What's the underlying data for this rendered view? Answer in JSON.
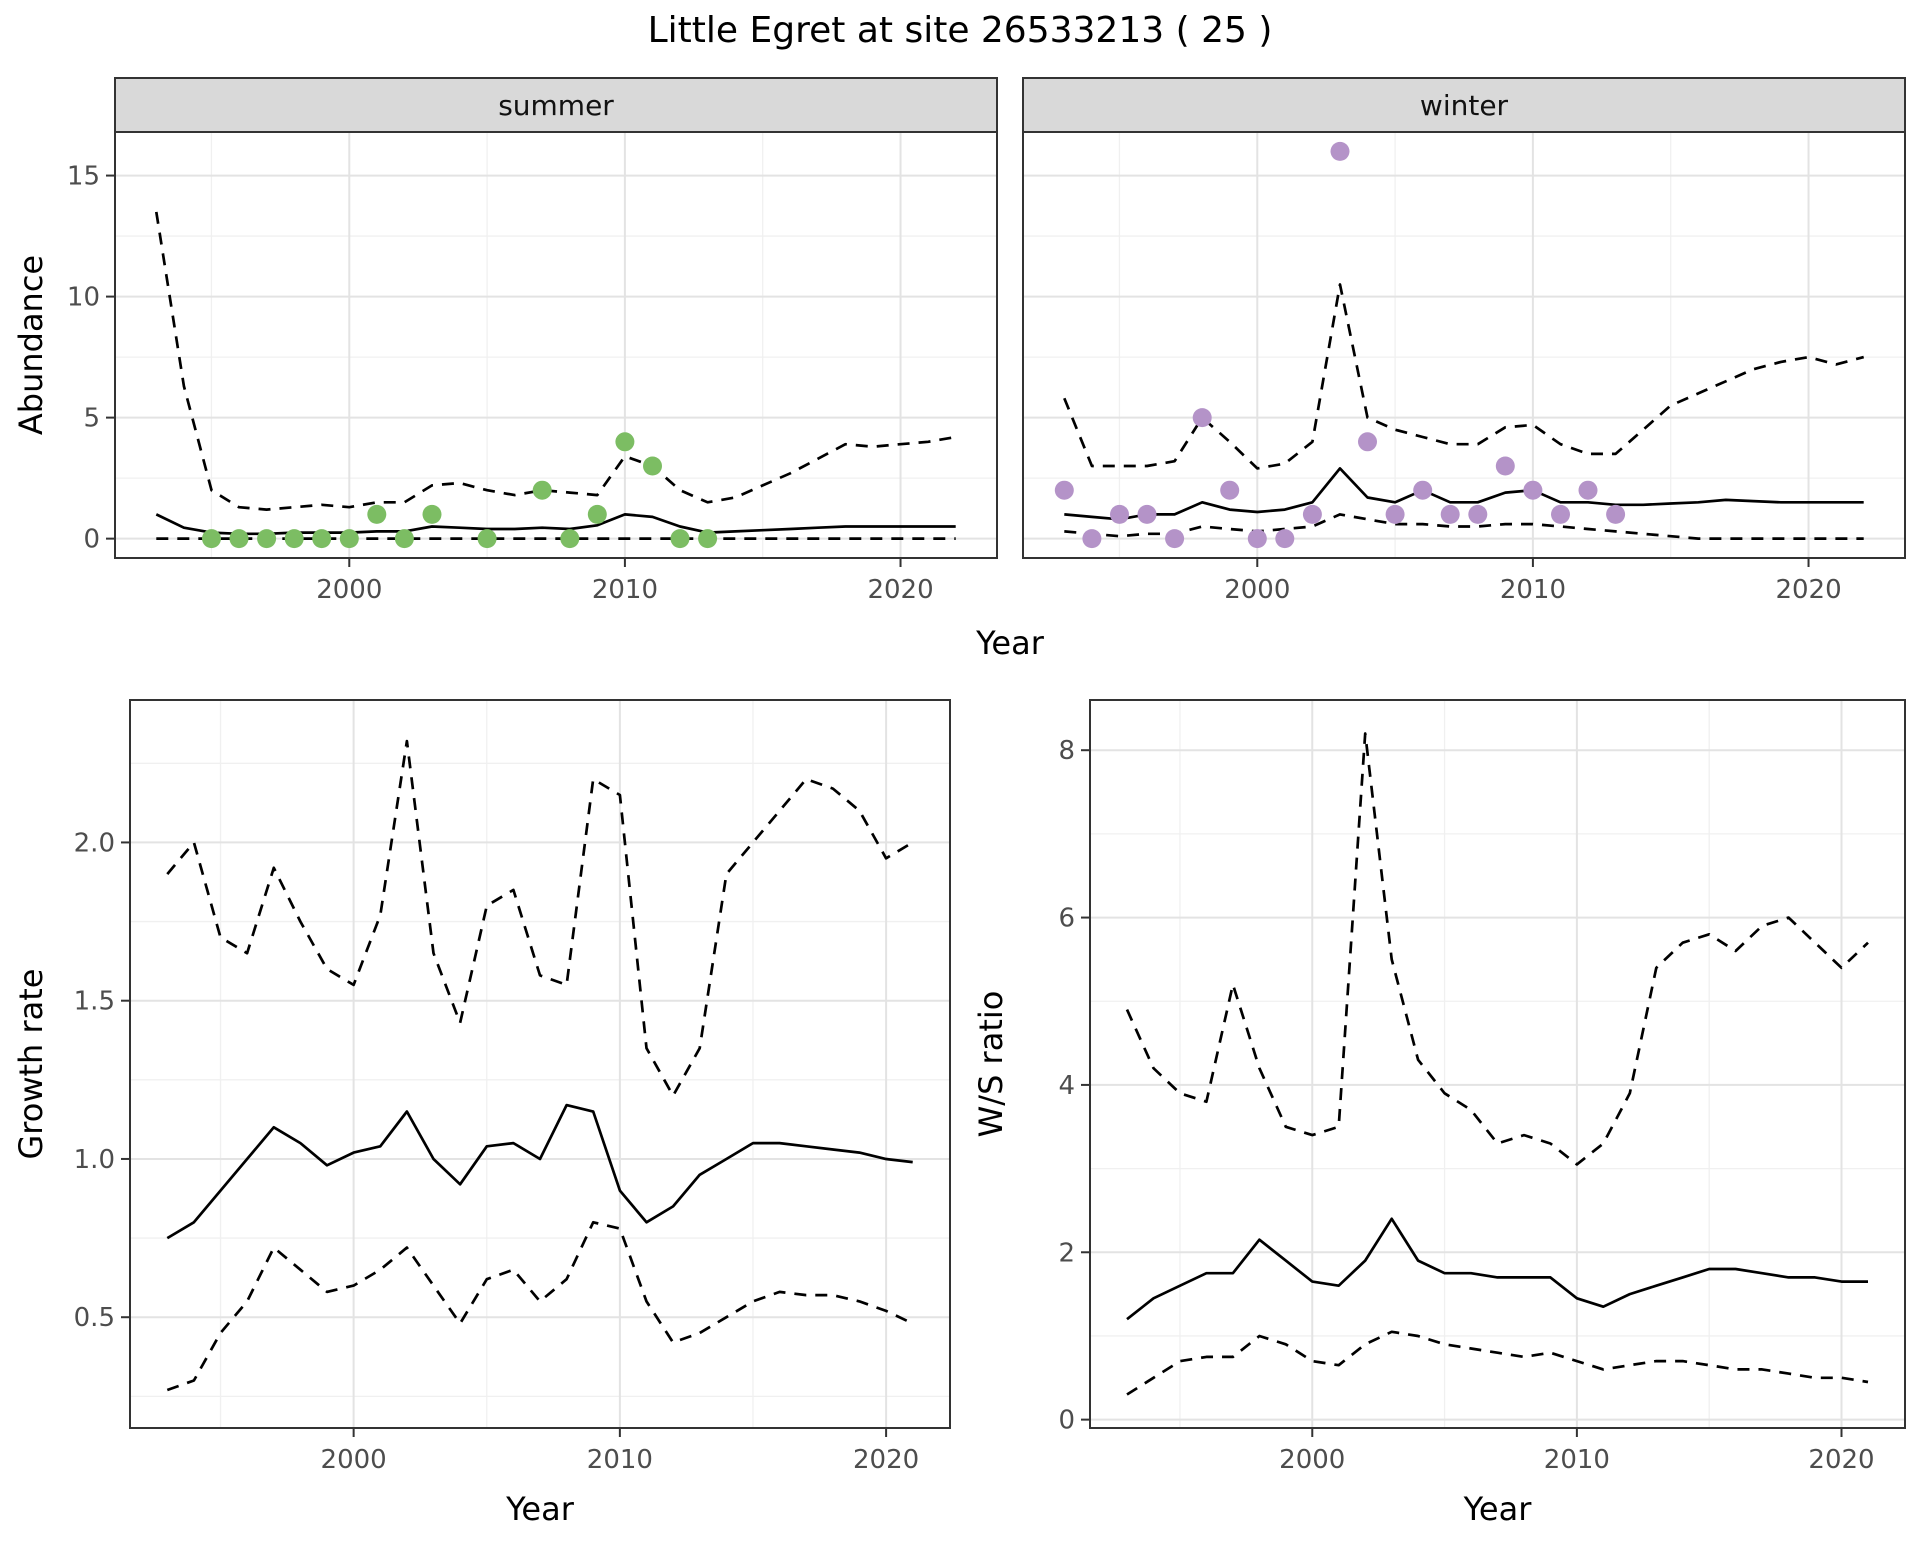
{
  "title": "Little Egret at site 26533213 ( 25 )",
  "theme": {
    "background": "#ffffff",
    "strip_background": "#d9d9d9",
    "panel_border": "#333333",
    "grid_major": "#e3e3e3",
    "grid_minor": "#f0f0f0",
    "axis_text": "#4d4d4d",
    "axis_title": "#000000",
    "line_color": "#000000",
    "summer_point_color": "#7cbd63",
    "winter_point_color": "#b493c8"
  },
  "chart_data": [
    {
      "id": "abundance-summer",
      "type": "line",
      "facet_label": "summer",
      "xlabel": "Year",
      "ylabel": "Abundance",
      "xlim": [
        1991.5,
        2023.5
      ],
      "ylim": [
        -0.8,
        16.8
      ],
      "xticks": [
        2000,
        2010,
        2020
      ],
      "xtick_labels": [
        "2000",
        "2010",
        "2020"
      ],
      "xticks_minor": [
        1995,
        2005,
        2015
      ],
      "yticks": [
        0,
        5,
        10,
        15
      ],
      "ytick_labels": [
        "0",
        "5",
        "10",
        "15"
      ],
      "yticks_minor": [
        2.5,
        7.5,
        12.5
      ],
      "x": [
        1993,
        1994,
        1995,
        1996,
        1997,
        1998,
        1999,
        2000,
        2001,
        2002,
        2003,
        2004,
        2005,
        2006,
        2007,
        2008,
        2009,
        2010,
        2011,
        2012,
        2013,
        2014,
        2015,
        2016,
        2017,
        2018,
        2019,
        2020,
        2021,
        2022
      ],
      "series": [
        {
          "name": "mean",
          "style": "solid",
          "values": [
            1.0,
            0.45,
            0.25,
            0.2,
            0.2,
            0.25,
            0.25,
            0.25,
            0.3,
            0.3,
            0.5,
            0.45,
            0.4,
            0.4,
            0.45,
            0.4,
            0.55,
            1.0,
            0.9,
            0.5,
            0.25,
            0.3,
            0.35,
            0.4,
            0.45,
            0.5,
            0.5,
            0.5,
            0.5,
            0.5
          ]
        },
        {
          "name": "upper-ci",
          "style": "dashed",
          "values": [
            13.5,
            6.3,
            2.0,
            1.3,
            1.2,
            1.3,
            1.4,
            1.3,
            1.5,
            1.5,
            2.2,
            2.3,
            2.0,
            1.8,
            2.0,
            1.9,
            1.8,
            3.4,
            3.0,
            2.0,
            1.5,
            1.7,
            2.2,
            2.7,
            3.3,
            3.9,
            3.8,
            3.9,
            4.0,
            4.2
          ]
        },
        {
          "name": "lower-ci",
          "style": "dashed",
          "values": [
            0,
            0,
            0,
            0,
            0,
            0,
            0,
            0,
            0,
            0,
            0,
            0,
            0,
            0,
            0,
            0,
            0,
            0,
            0,
            0,
            0,
            0,
            0,
            0,
            0,
            0,
            0,
            0,
            0,
            0
          ]
        }
      ],
      "points": {
        "name": "observed-counts-summer",
        "color_key": "summer_point_color",
        "x": [
          1995,
          1996,
          1997,
          1998,
          1999,
          2000,
          2001,
          2002,
          2003,
          2005,
          2007,
          2008,
          2009,
          2010,
          2011,
          2012,
          2013
        ],
        "y": [
          0,
          0,
          0,
          0,
          0,
          0,
          1,
          0,
          1,
          0,
          2,
          0,
          1,
          4,
          3,
          0,
          0
        ]
      }
    },
    {
      "id": "abundance-winter",
      "type": "line",
      "facet_label": "winter",
      "xlabel": "Year",
      "ylabel": "Abundance",
      "xlim": [
        1991.5,
        2023.5
      ],
      "ylim": [
        -0.8,
        16.8
      ],
      "xticks": [
        2000,
        2010,
        2020
      ],
      "xtick_labels": [
        "2000",
        "2010",
        "2020"
      ],
      "xticks_minor": [
        1995,
        2005,
        2015
      ],
      "yticks": [
        0,
        5,
        10,
        15
      ],
      "ytick_labels": [
        "0",
        "5",
        "10",
        "15"
      ],
      "yticks_minor": [
        2.5,
        7.5,
        12.5
      ],
      "x": [
        1993,
        1994,
        1995,
        1996,
        1997,
        1998,
        1999,
        2000,
        2001,
        2002,
        2003,
        2004,
        2005,
        2006,
        2007,
        2008,
        2009,
        2010,
        2011,
        2012,
        2013,
        2014,
        2015,
        2016,
        2017,
        2018,
        2019,
        2020,
        2021,
        2022
      ],
      "series": [
        {
          "name": "mean",
          "style": "solid",
          "values": [
            1.0,
            0.9,
            0.8,
            1.0,
            1.0,
            1.5,
            1.2,
            1.1,
            1.2,
            1.5,
            2.9,
            1.7,
            1.5,
            2.0,
            1.5,
            1.5,
            1.9,
            2.0,
            1.5,
            1.5,
            1.4,
            1.4,
            1.45,
            1.5,
            1.6,
            1.55,
            1.5,
            1.5,
            1.5,
            1.5
          ]
        },
        {
          "name": "upper-ci",
          "style": "dashed",
          "values": [
            5.8,
            3.0,
            3.0,
            3.0,
            3.2,
            5.0,
            4.0,
            2.9,
            3.1,
            4.0,
            10.5,
            5.0,
            4.5,
            4.2,
            3.9,
            3.9,
            4.6,
            4.7,
            3.9,
            3.5,
            3.5,
            4.5,
            5.5,
            6.0,
            6.5,
            7.0,
            7.3,
            7.5,
            7.2,
            7.5
          ]
        },
        {
          "name": "lower-ci",
          "style": "dashed",
          "values": [
            0.3,
            0.2,
            0.1,
            0.2,
            0.2,
            0.5,
            0.4,
            0.3,
            0.4,
            0.5,
            1.0,
            0.8,
            0.6,
            0.6,
            0.5,
            0.5,
            0.6,
            0.6,
            0.5,
            0.4,
            0.3,
            0.2,
            0.1,
            0,
            0,
            0,
            0,
            0,
            0,
            0
          ]
        }
      ],
      "points": {
        "name": "observed-counts-winter",
        "color_key": "winter_point_color",
        "x": [
          1993,
          1994,
          1995,
          1996,
          1997,
          1998,
          1999,
          2000,
          2001,
          2002,
          2003,
          2004,
          2005,
          2006,
          2007,
          2008,
          2009,
          2010,
          2011,
          2012,
          2013
        ],
        "y": [
          2,
          0,
          1,
          1,
          0,
          5,
          2,
          0,
          0,
          1,
          16,
          4,
          1,
          2,
          1,
          1,
          3,
          2,
          1,
          2,
          1
        ]
      }
    },
    {
      "id": "growth-rate",
      "type": "line",
      "facet_label": "",
      "xlabel": "Year",
      "ylabel": "Growth rate",
      "xlim": [
        1991.6,
        2022.4
      ],
      "ylim": [
        0.15,
        2.45
      ],
      "xticks": [
        2000,
        2010,
        2020
      ],
      "xtick_labels": [
        "2000",
        "2010",
        "2020"
      ],
      "xticks_minor": [
        1995,
        2005,
        2015
      ],
      "yticks": [
        0.5,
        1.0,
        1.5,
        2.0
      ],
      "ytick_labels": [
        "0.5",
        "1.0",
        "1.5",
        "2.0"
      ],
      "yticks_minor": [
        0.25,
        0.75,
        1.25,
        1.75,
        2.25
      ],
      "x": [
        1993,
        1994,
        1995,
        1996,
        1997,
        1998,
        1999,
        2000,
        2001,
        2002,
        2003,
        2004,
        2005,
        2006,
        2007,
        2008,
        2009,
        2010,
        2011,
        2012,
        2013,
        2014,
        2015,
        2016,
        2017,
        2018,
        2019,
        2020,
        2021
      ],
      "series": [
        {
          "name": "mean",
          "style": "solid",
          "values": [
            0.75,
            0.8,
            0.9,
            1.0,
            1.1,
            1.05,
            0.98,
            1.02,
            1.04,
            1.15,
            1.0,
            0.92,
            1.04,
            1.05,
            1.0,
            1.17,
            1.15,
            0.9,
            0.8,
            0.85,
            0.95,
            1.0,
            1.05,
            1.05,
            1.04,
            1.03,
            1.02,
            1.0,
            0.99
          ]
        },
        {
          "name": "upper-ci",
          "style": "dashed",
          "values": [
            1.9,
            2.0,
            1.7,
            1.65,
            1.92,
            1.75,
            1.6,
            1.55,
            1.77,
            2.32,
            1.65,
            1.43,
            1.8,
            1.85,
            1.58,
            1.55,
            2.2,
            2.15,
            1.35,
            1.2,
            1.35,
            1.9,
            2.0,
            2.1,
            2.2,
            2.17,
            2.1,
            1.95,
            2.0
          ]
        },
        {
          "name": "lower-ci",
          "style": "dashed",
          "values": [
            0.27,
            0.3,
            0.45,
            0.55,
            0.72,
            0.65,
            0.58,
            0.6,
            0.65,
            0.72,
            0.6,
            0.48,
            0.62,
            0.65,
            0.55,
            0.62,
            0.8,
            0.78,
            0.55,
            0.42,
            0.45,
            0.5,
            0.55,
            0.58,
            0.57,
            0.57,
            0.55,
            0.52,
            0.48
          ]
        }
      ]
    },
    {
      "id": "ws-ratio",
      "type": "line",
      "facet_label": "",
      "xlabel": "Year",
      "ylabel": "W/S ratio",
      "xlim": [
        1991.6,
        2022.4
      ],
      "ylim": [
        -0.1,
        8.6
      ],
      "xticks": [
        2000,
        2010,
        2020
      ],
      "xtick_labels": [
        "2000",
        "2010",
        "2020"
      ],
      "xticks_minor": [
        1995,
        2005,
        2015
      ],
      "yticks": [
        0,
        2,
        4,
        6,
        8
      ],
      "ytick_labels": [
        "0",
        "2",
        "4",
        "6",
        "8"
      ],
      "yticks_minor": [
        1,
        3,
        5,
        7
      ],
      "x": [
        1993,
        1994,
        1995,
        1996,
        1997,
        1998,
        1999,
        2000,
        2001,
        2002,
        2003,
        2004,
        2005,
        2006,
        2007,
        2008,
        2009,
        2010,
        2011,
        2012,
        2013,
        2014,
        2015,
        2016,
        2017,
        2018,
        2019,
        2020,
        2021
      ],
      "series": [
        {
          "name": "mean",
          "style": "solid",
          "values": [
            1.2,
            1.45,
            1.6,
            1.75,
            1.75,
            2.15,
            1.9,
            1.65,
            1.6,
            1.9,
            2.4,
            1.9,
            1.75,
            1.75,
            1.7,
            1.7,
            1.7,
            1.45,
            1.35,
            1.5,
            1.6,
            1.7,
            1.8,
            1.8,
            1.75,
            1.7,
            1.7,
            1.65,
            1.65
          ]
        },
        {
          "name": "upper-ci",
          "style": "dashed",
          "values": [
            4.9,
            4.2,
            3.9,
            3.8,
            5.2,
            4.2,
            3.5,
            3.4,
            3.5,
            8.2,
            5.5,
            4.3,
            3.9,
            3.7,
            3.3,
            3.4,
            3.3,
            3.05,
            3.3,
            3.9,
            5.4,
            5.7,
            5.8,
            5.6,
            5.9,
            6.0,
            5.7,
            5.4,
            5.7
          ]
        },
        {
          "name": "lower-ci",
          "style": "dashed",
          "values": [
            0.3,
            0.5,
            0.7,
            0.75,
            0.75,
            1.0,
            0.9,
            0.7,
            0.65,
            0.9,
            1.05,
            1.0,
            0.9,
            0.85,
            0.8,
            0.75,
            0.8,
            0.7,
            0.6,
            0.65,
            0.7,
            0.7,
            0.65,
            0.6,
            0.6,
            0.55,
            0.5,
            0.5,
            0.45
          ]
        }
      ]
    }
  ]
}
